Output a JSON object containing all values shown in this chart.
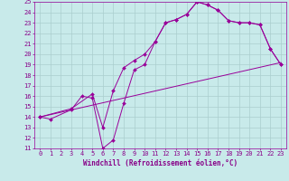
{
  "xlabel": "Windchill (Refroidissement éolien,°C)",
  "xlim": [
    -0.5,
    23.5
  ],
  "ylim": [
    11,
    25
  ],
  "xticks": [
    0,
    1,
    2,
    3,
    4,
    5,
    6,
    7,
    8,
    9,
    10,
    11,
    12,
    13,
    14,
    15,
    16,
    17,
    18,
    19,
    20,
    21,
    22,
    23
  ],
  "yticks": [
    11,
    12,
    13,
    14,
    15,
    16,
    17,
    18,
    19,
    20,
    21,
    22,
    23,
    24,
    25
  ],
  "bg_color": "#c8eaea",
  "grid_color": "#aacece",
  "line_color": "#990099",
  "line1_x": [
    0,
    1,
    3,
    4,
    5,
    6,
    7,
    8,
    9,
    10,
    11,
    12,
    13,
    14,
    15,
    16,
    17,
    18,
    19,
    20,
    21,
    22,
    23
  ],
  "line1_y": [
    14,
    13.8,
    14.7,
    16.0,
    15.8,
    11.0,
    11.8,
    15.3,
    18.5,
    19.0,
    21.2,
    23.0,
    23.3,
    23.8,
    25.0,
    24.7,
    24.2,
    23.2,
    23.0,
    23.0,
    22.8,
    20.5,
    19.0
  ],
  "line2_x": [
    0,
    3,
    5,
    6,
    7,
    8,
    9,
    10,
    11,
    12,
    13,
    14,
    15,
    16,
    17,
    18,
    19,
    20,
    21,
    22,
    23
  ],
  "line2_y": [
    14,
    14.8,
    16.2,
    13.0,
    16.5,
    18.7,
    19.4,
    20.0,
    21.2,
    23.0,
    23.3,
    23.8,
    25.0,
    24.7,
    24.2,
    23.2,
    23.0,
    23.0,
    22.8,
    20.5,
    19.0
  ],
  "line3_x": [
    0,
    23
  ],
  "line3_y": [
    14,
    19.2
  ],
  "marker_size": 2.0,
  "font_color": "#880088",
  "axis_label_fontsize": 5.5,
  "tick_fontsize": 5.0,
  "figsize": [
    3.2,
    2.0
  ],
  "dpi": 100
}
